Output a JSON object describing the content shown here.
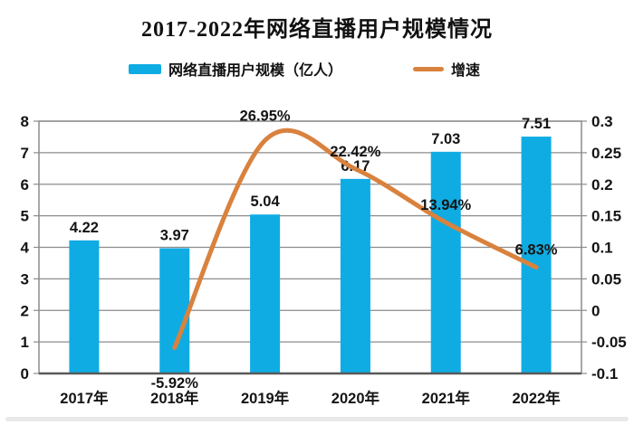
{
  "title": "2017-2022年网络直播用户规模情况",
  "legend": [
    {
      "label": "网络直播用户规模（亿人）",
      "type": "bar",
      "color": "#0face4"
    },
    {
      "label": "增速",
      "type": "line",
      "color": "#d9823e"
    }
  ],
  "chart_data": {
    "type": "bar",
    "subtype": "bar-line-combo",
    "title": "2017-2022年网络直播用户规模情况",
    "categories": [
      "2017年",
      "2018年",
      "2019年",
      "2020年",
      "2021年",
      "2022年"
    ],
    "series": [
      {
        "name": "网络直播用户规模（亿人）",
        "type": "bar",
        "axis": "left",
        "color": "#0face4",
        "values": [
          4.22,
          3.97,
          5.04,
          6.17,
          7.03,
          7.51
        ],
        "value_labels": [
          "4.22",
          "3.97",
          "5.04",
          "6.17",
          "7.03",
          "7.51"
        ]
      },
      {
        "name": "增速",
        "type": "line",
        "axis": "right",
        "color": "#d9823e",
        "values": [
          null,
          -0.0592,
          0.2695,
          0.2242,
          0.1394,
          0.0683
        ],
        "value_labels": [
          "",
          "-5.92%",
          "26.95%",
          "22.42%",
          "13.94%",
          "6.83%"
        ]
      }
    ],
    "left_axis": {
      "min": 0,
      "max": 8,
      "step": 1,
      "ticks": [
        "0",
        "1",
        "2",
        "3",
        "4",
        "5",
        "6",
        "7",
        "8"
      ]
    },
    "right_axis": {
      "min": -0.1,
      "max": 0.3,
      "step": 0.05,
      "ticks": [
        "-0.1",
        "-0.05",
        "0",
        "0.05",
        "0.1",
        "0.15",
        "0.2",
        "0.25",
        "0.3"
      ]
    },
    "grid": true,
    "legend_position": "top",
    "grid_color": "#8c8c8c",
    "axis_color": "#595959",
    "text_color": "#141414"
  }
}
